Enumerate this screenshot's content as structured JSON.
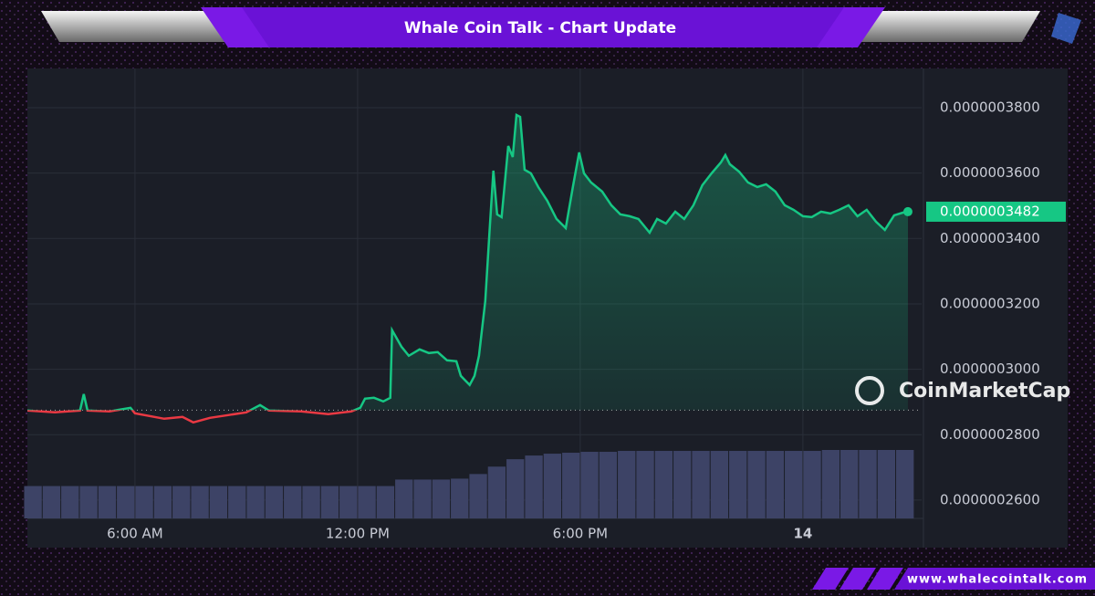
{
  "header": {
    "title": "Whale Coin Talk - Chart Update"
  },
  "footer": {
    "url": "www.whalecointalk.com"
  },
  "chart_data": {
    "type": "line",
    "watermark": "CoinMarketCap",
    "x": [
      3.1,
      3.84,
      4.52,
      4.62,
      4.72,
      5.31,
      5.88,
      6.0,
      6.79,
      7.28,
      7.57,
      8.02,
      8.51,
      9.0,
      9.37,
      9.61,
      10.48,
      11.21,
      11.83,
      12.07,
      12.2,
      12.44,
      12.69,
      12.88,
      12.93,
      13.18,
      13.38,
      13.67,
      13.92,
      14.16,
      14.41,
      14.66,
      14.78,
      15.02,
      15.15,
      15.27,
      15.44,
      15.56,
      15.66,
      15.76,
      15.88,
      16.06,
      16.18,
      16.28,
      16.38,
      16.5,
      16.67,
      16.87,
      17.11,
      17.36,
      17.61,
      17.8,
      17.97,
      18.1,
      18.29,
      18.59,
      18.84,
      19.08,
      19.33,
      19.57,
      19.87,
      20.07,
      20.31,
      20.56,
      20.8,
      21.05,
      21.29,
      21.54,
      21.79,
      21.91,
      22.03,
      22.28,
      22.52,
      22.77,
      23.01,
      23.26,
      23.51,
      23.75,
      24.0,
      24.24,
      24.49,
      24.74,
      24.98,
      25.23,
      25.47,
      25.72,
      25.97,
      26.21,
      26.46,
      26.7,
      26.83
    ],
    "series": [
      {
        "color": "#16c784",
        "down_color": "#ea3943",
        "values": [
          2.8739e-07,
          2.8683e-07,
          2.8739e-07,
          2.9241e-07,
          2.8739e-07,
          2.8711e-07,
          2.8823e-07,
          2.8656e-07,
          2.8488e-07,
          2.8544e-07,
          2.8377e-07,
          2.8516e-07,
          2.86e-07,
          2.8683e-07,
          2.8907e-07,
          2.8739e-07,
          2.8711e-07,
          2.8628e-07,
          2.8711e-07,
          2.8823e-07,
          2.9102e-07,
          2.913e-07,
          2.9018e-07,
          2.913e-07,
          3.1194e-07,
          3.0692e-07,
          3.0413e-07,
          3.0608e-07,
          3.0497e-07,
          3.0524e-07,
          3.0273e-07,
          3.0245e-07,
          2.9799e-07,
          2.952e-07,
          2.9799e-07,
          3.0413e-07,
          3.2086e-07,
          3.4318e-07,
          3.6075e-07,
          3.4736e-07,
          3.4653e-07,
          3.6828e-07,
          3.6494e-07,
          3.7777e-07,
          3.7721e-07,
          3.6103e-07,
          3.5992e-07,
          3.5573e-07,
          3.5155e-07,
          3.4597e-07,
          3.4318e-07,
          3.5573e-07,
          3.6633e-07,
          3.5992e-07,
          3.5713e-07,
          3.5434e-07,
          3.5015e-07,
          3.4736e-07,
          3.4681e-07,
          3.4597e-07,
          3.4179e-07,
          3.4597e-07,
          3.4457e-07,
          3.482e-07,
          3.4597e-07,
          3.5015e-07,
          3.5629e-07,
          3.5992e-07,
          3.6326e-07,
          3.655e-07,
          3.6271e-07,
          3.6047e-07,
          3.5713e-07,
          3.5573e-07,
          3.5657e-07,
          3.5434e-07,
          3.5015e-07,
          3.4876e-07,
          3.4681e-07,
          3.4653e-07,
          3.482e-07,
          3.4764e-07,
          3.4876e-07,
          3.5015e-07,
          3.4681e-07,
          3.4876e-07,
          3.4513e-07,
          3.4262e-07,
          3.4709e-07,
          3.4792e-07,
          3.482e-07
        ]
      }
    ],
    "baseline": 2.875e-07,
    "last_price": {
      "value": 3.482e-07,
      "label": "0.0000003482"
    },
    "volume": {
      "color": "#3d4366",
      "x": [
        3.25,
        3.75,
        4.25,
        4.75,
        5.25,
        5.75,
        6.25,
        6.75,
        7.25,
        7.75,
        8.25,
        8.75,
        9.25,
        9.75,
        10.25,
        10.75,
        11.25,
        11.75,
        12.25,
        12.75,
        13.25,
        13.75,
        14.25,
        14.75,
        15.25,
        15.75,
        16.25,
        16.75,
        17.25,
        17.75,
        18.25,
        18.75,
        19.25,
        19.75,
        20.25,
        20.75,
        21.25,
        21.75,
        22.25,
        22.75,
        23.25,
        23.75,
        24.25,
        24.75,
        25.25,
        25.75,
        26.25,
        26.75
      ],
      "values": [
        35,
        35,
        35,
        35,
        35,
        35,
        35,
        35,
        35,
        35,
        35,
        35,
        35,
        35,
        35,
        35,
        35,
        35,
        35,
        35,
        42,
        42,
        42,
        43,
        48,
        56,
        64,
        68,
        70,
        71,
        72,
        72,
        73,
        73,
        73,
        73,
        73,
        73,
        73,
        73,
        73,
        73,
        73,
        74,
        74,
        74,
        74,
        74
      ]
    },
    "xlim": [
      3.1,
      27.2
    ],
    "xticks": [
      {
        "value": 6,
        "label": "6:00 AM"
      },
      {
        "value": 12,
        "label": "12:00 PM"
      },
      {
        "value": 18,
        "label": "6:00 PM"
      },
      {
        "value": 24,
        "label": "14"
      }
    ],
    "ylim": [
      2.544e-07,
      3.92e-07
    ],
    "yticks": [
      {
        "value": 2.6e-07,
        "label": "0.0000002600"
      },
      {
        "value": 2.8e-07,
        "label": "0.0000002800"
      },
      {
        "value": 3e-07,
        "label": "0.0000003000"
      },
      {
        "value": 3.2e-07,
        "label": "0.0000003200"
      },
      {
        "value": 3.4e-07,
        "label": "0.0000003400"
      },
      {
        "value": 3.6e-07,
        "label": "0.0000003600"
      },
      {
        "value": 3.8e-07,
        "label": "0.0000003800"
      }
    ],
    "grid": true
  }
}
